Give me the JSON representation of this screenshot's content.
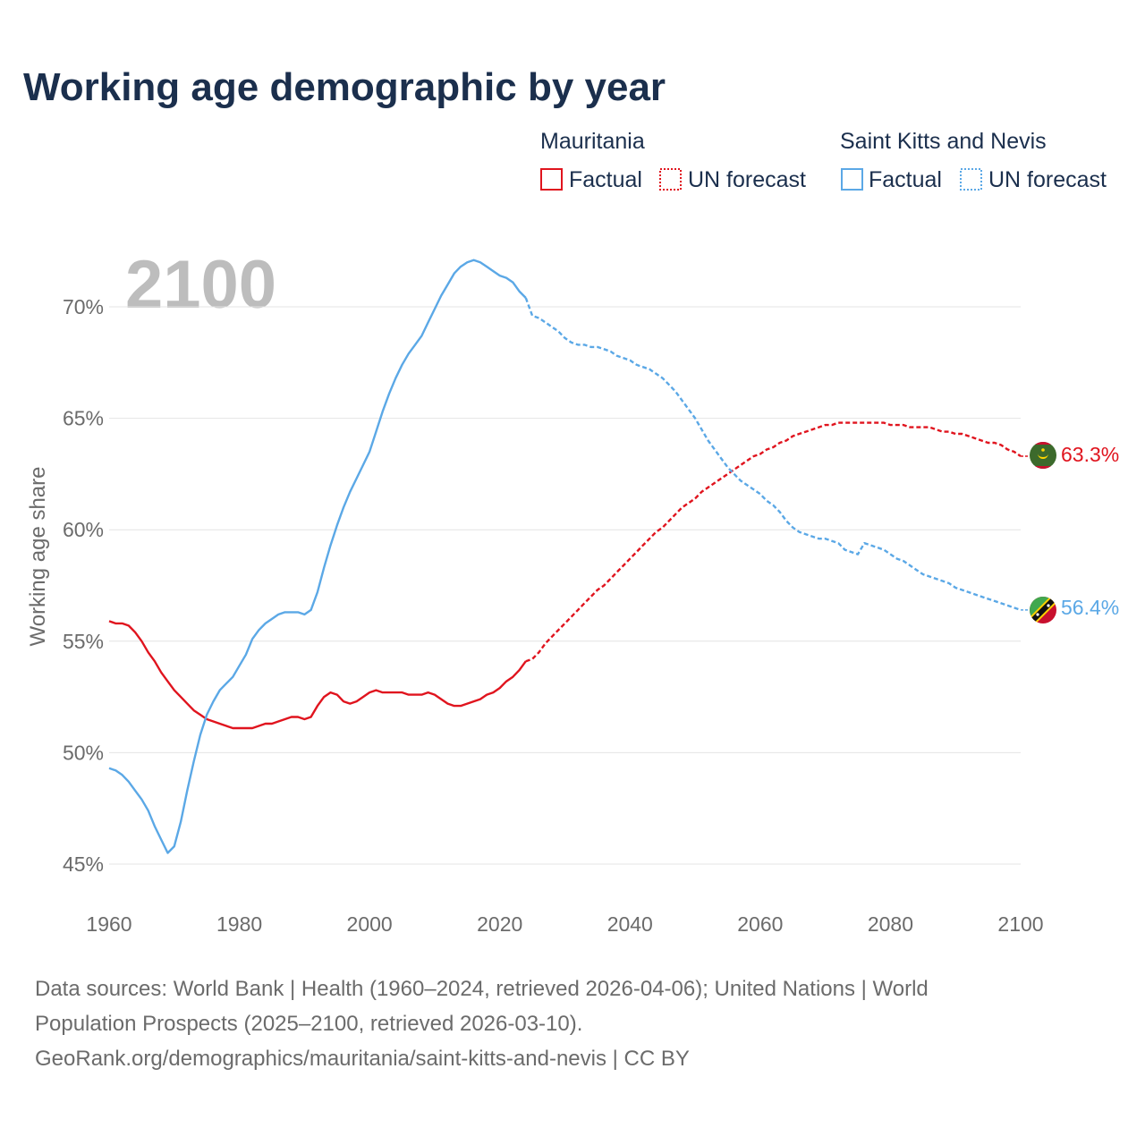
{
  "title": "Working age demographic by year",
  "big_year": "2100",
  "legend": {
    "groups": [
      {
        "name": "Mauritania",
        "factual": "Factual",
        "forecast": "UN forecast",
        "color": "#e0141e"
      },
      {
        "name": "Saint Kitts and Nevis",
        "factual": "Factual",
        "forecast": "UN forecast",
        "color": "#5ba8e6"
      }
    ]
  },
  "footer": {
    "line1": "Data sources: World Bank | Health (1960–2024, retrieved 2026-04-06); United Nations | World",
    "line2": "Population Prospects (2025–2100, retrieved 2026-03-10).",
    "line3": "GeoRank.org/demographics/mauritania/saint-kitts-and-nevis | CC BY"
  },
  "chart_data": {
    "type": "line",
    "title": "Working age demographic by year",
    "xlabel": "",
    "ylabel": "Working age share",
    "xlim": [
      1960,
      2100
    ],
    "ylim": [
      44.5,
      72.5
    ],
    "x_ticks": [
      1960,
      1980,
      2000,
      2020,
      2040,
      2060,
      2080,
      2100
    ],
    "x_tick_labels": [
      "1960",
      "1980",
      "2000",
      "2020",
      "2040",
      "2060",
      "2080",
      "2100"
    ],
    "y_ticks": [
      45,
      50,
      55,
      60,
      65,
      70
    ],
    "y_tick_labels": [
      "45%",
      "50%",
      "55%",
      "60%",
      "65%",
      "70%"
    ],
    "grid": true,
    "factual_end": 2024,
    "series": [
      {
        "name": "Mauritania",
        "color": "#e0141e",
        "end_label": "63.3%",
        "points": [
          [
            1960,
            55.9
          ],
          [
            1961,
            55.8
          ],
          [
            1962,
            55.8
          ],
          [
            1963,
            55.7
          ],
          [
            1964,
            55.4
          ],
          [
            1965,
            55.0
          ],
          [
            1966,
            54.5
          ],
          [
            1967,
            54.1
          ],
          [
            1968,
            53.6
          ],
          [
            1969,
            53.2
          ],
          [
            1970,
            52.8
          ],
          [
            1971,
            52.5
          ],
          [
            1972,
            52.2
          ],
          [
            1973,
            51.9
          ],
          [
            1974,
            51.7
          ],
          [
            1975,
            51.5
          ],
          [
            1976,
            51.4
          ],
          [
            1977,
            51.3
          ],
          [
            1978,
            51.2
          ],
          [
            1979,
            51.1
          ],
          [
            1980,
            51.1
          ],
          [
            1981,
            51.1
          ],
          [
            1982,
            51.1
          ],
          [
            1983,
            51.2
          ],
          [
            1984,
            51.3
          ],
          [
            1985,
            51.3
          ],
          [
            1986,
            51.4
          ],
          [
            1987,
            51.5
          ],
          [
            1988,
            51.6
          ],
          [
            1989,
            51.6
          ],
          [
            1990,
            51.5
          ],
          [
            1991,
            51.6
          ],
          [
            1992,
            52.1
          ],
          [
            1993,
            52.5
          ],
          [
            1994,
            52.7
          ],
          [
            1995,
            52.6
          ],
          [
            1996,
            52.3
          ],
          [
            1997,
            52.2
          ],
          [
            1998,
            52.3
          ],
          [
            1999,
            52.5
          ],
          [
            2000,
            52.7
          ],
          [
            2001,
            52.8
          ],
          [
            2002,
            52.7
          ],
          [
            2003,
            52.7
          ],
          [
            2004,
            52.7
          ],
          [
            2005,
            52.7
          ],
          [
            2006,
            52.6
          ],
          [
            2007,
            52.6
          ],
          [
            2008,
            52.6
          ],
          [
            2009,
            52.7
          ],
          [
            2010,
            52.6
          ],
          [
            2011,
            52.4
          ],
          [
            2012,
            52.2
          ],
          [
            2013,
            52.1
          ],
          [
            2014,
            52.1
          ],
          [
            2015,
            52.2
          ],
          [
            2016,
            52.3
          ],
          [
            2017,
            52.4
          ],
          [
            2018,
            52.6
          ],
          [
            2019,
            52.7
          ],
          [
            2020,
            52.9
          ],
          [
            2021,
            53.2
          ],
          [
            2022,
            53.4
          ],
          [
            2023,
            53.7
          ],
          [
            2024,
            54.1
          ],
          [
            2025,
            54.2
          ],
          [
            2026,
            54.5
          ],
          [
            2027,
            54.9
          ],
          [
            2028,
            55.2
          ],
          [
            2029,
            55.5
          ],
          [
            2030,
            55.8
          ],
          [
            2031,
            56.1
          ],
          [
            2032,
            56.4
          ],
          [
            2033,
            56.7
          ],
          [
            2034,
            57.0
          ],
          [
            2035,
            57.3
          ],
          [
            2036,
            57.5
          ],
          [
            2037,
            57.8
          ],
          [
            2038,
            58.1
          ],
          [
            2039,
            58.4
          ],
          [
            2040,
            58.7
          ],
          [
            2041,
            59.0
          ],
          [
            2042,
            59.3
          ],
          [
            2043,
            59.6
          ],
          [
            2044,
            59.9
          ],
          [
            2045,
            60.1
          ],
          [
            2046,
            60.4
          ],
          [
            2047,
            60.7
          ],
          [
            2048,
            61.0
          ],
          [
            2049,
            61.2
          ],
          [
            2050,
            61.4
          ],
          [
            2051,
            61.7
          ],
          [
            2052,
            61.9
          ],
          [
            2053,
            62.1
          ],
          [
            2054,
            62.3
          ],
          [
            2055,
            62.5
          ],
          [
            2056,
            62.7
          ],
          [
            2057,
            62.9
          ],
          [
            2058,
            63.1
          ],
          [
            2059,
            63.3
          ],
          [
            2060,
            63.4
          ],
          [
            2061,
            63.6
          ],
          [
            2062,
            63.7
          ],
          [
            2063,
            63.9
          ],
          [
            2064,
            64.0
          ],
          [
            2065,
            64.2
          ],
          [
            2066,
            64.3
          ],
          [
            2067,
            64.4
          ],
          [
            2068,
            64.5
          ],
          [
            2069,
            64.6
          ],
          [
            2070,
            64.7
          ],
          [
            2071,
            64.7
          ],
          [
            2072,
            64.8
          ],
          [
            2073,
            64.8
          ],
          [
            2074,
            64.8
          ],
          [
            2075,
            64.8
          ],
          [
            2076,
            64.8
          ],
          [
            2077,
            64.8
          ],
          [
            2078,
            64.8
          ],
          [
            2079,
            64.8
          ],
          [
            2080,
            64.7
          ],
          [
            2081,
            64.7
          ],
          [
            2082,
            64.7
          ],
          [
            2083,
            64.6
          ],
          [
            2084,
            64.6
          ],
          [
            2085,
            64.6
          ],
          [
            2086,
            64.6
          ],
          [
            2087,
            64.5
          ],
          [
            2088,
            64.4
          ],
          [
            2089,
            64.4
          ],
          [
            2090,
            64.3
          ],
          [
            2091,
            64.3
          ],
          [
            2092,
            64.2
          ],
          [
            2093,
            64.1
          ],
          [
            2094,
            64.0
          ],
          [
            2095,
            63.9
          ],
          [
            2096,
            63.9
          ],
          [
            2097,
            63.8
          ],
          [
            2098,
            63.6
          ],
          [
            2099,
            63.5
          ],
          [
            2100,
            63.3
          ]
        ]
      },
      {
        "name": "Saint Kitts and Nevis",
        "color": "#5ba8e6",
        "end_label": "56.4%",
        "points": [
          [
            1960,
            49.3
          ],
          [
            1961,
            49.2
          ],
          [
            1962,
            49.0
          ],
          [
            1963,
            48.7
          ],
          [
            1964,
            48.3
          ],
          [
            1965,
            47.9
          ],
          [
            1966,
            47.4
          ],
          [
            1967,
            46.7
          ],
          [
            1968,
            46.1
          ],
          [
            1969,
            45.5
          ],
          [
            1970,
            45.8
          ],
          [
            1971,
            46.9
          ],
          [
            1972,
            48.3
          ],
          [
            1973,
            49.6
          ],
          [
            1974,
            50.8
          ],
          [
            1975,
            51.7
          ],
          [
            1976,
            52.3
          ],
          [
            1977,
            52.8
          ],
          [
            1978,
            53.1
          ],
          [
            1979,
            53.4
          ],
          [
            1980,
            53.9
          ],
          [
            1981,
            54.4
          ],
          [
            1982,
            55.1
          ],
          [
            1983,
            55.5
          ],
          [
            1984,
            55.8
          ],
          [
            1985,
            56.0
          ],
          [
            1986,
            56.2
          ],
          [
            1987,
            56.3
          ],
          [
            1988,
            56.3
          ],
          [
            1989,
            56.3
          ],
          [
            1990,
            56.2
          ],
          [
            1991,
            56.4
          ],
          [
            1992,
            57.2
          ],
          [
            1993,
            58.3
          ],
          [
            1994,
            59.3
          ],
          [
            1995,
            60.2
          ],
          [
            1996,
            61.0
          ],
          [
            1997,
            61.7
          ],
          [
            1998,
            62.3
          ],
          [
            1999,
            62.9
          ],
          [
            2000,
            63.5
          ],
          [
            2001,
            64.4
          ],
          [
            2002,
            65.3
          ],
          [
            2003,
            66.1
          ],
          [
            2004,
            66.8
          ],
          [
            2005,
            67.4
          ],
          [
            2006,
            67.9
          ],
          [
            2007,
            68.3
          ],
          [
            2008,
            68.7
          ],
          [
            2009,
            69.3
          ],
          [
            2010,
            69.9
          ],
          [
            2011,
            70.5
          ],
          [
            2012,
            71.0
          ],
          [
            2013,
            71.5
          ],
          [
            2014,
            71.8
          ],
          [
            2015,
            72.0
          ],
          [
            2016,
            72.1
          ],
          [
            2017,
            72.0
          ],
          [
            2018,
            71.8
          ],
          [
            2019,
            71.6
          ],
          [
            2020,
            71.4
          ],
          [
            2021,
            71.3
          ],
          [
            2022,
            71.1
          ],
          [
            2023,
            70.7
          ],
          [
            2024,
            70.4
          ],
          [
            2025,
            69.6
          ],
          [
            2026,
            69.5
          ],
          [
            2027,
            69.3
          ],
          [
            2028,
            69.1
          ],
          [
            2029,
            68.9
          ],
          [
            2030,
            68.6
          ],
          [
            2031,
            68.4
          ],
          [
            2032,
            68.3
          ],
          [
            2033,
            68.3
          ],
          [
            2034,
            68.2
          ],
          [
            2035,
            68.2
          ],
          [
            2036,
            68.1
          ],
          [
            2037,
            68.0
          ],
          [
            2038,
            67.8
          ],
          [
            2039,
            67.7
          ],
          [
            2040,
            67.6
          ],
          [
            2041,
            67.4
          ],
          [
            2042,
            67.3
          ],
          [
            2043,
            67.2
          ],
          [
            2044,
            67.0
          ],
          [
            2045,
            66.8
          ],
          [
            2046,
            66.5
          ],
          [
            2047,
            66.2
          ],
          [
            2048,
            65.8
          ],
          [
            2049,
            65.4
          ],
          [
            2050,
            65.0
          ],
          [
            2051,
            64.5
          ],
          [
            2052,
            64.0
          ],
          [
            2053,
            63.6
          ],
          [
            2054,
            63.2
          ],
          [
            2055,
            62.8
          ],
          [
            2056,
            62.5
          ],
          [
            2057,
            62.2
          ],
          [
            2058,
            62.0
          ],
          [
            2059,
            61.8
          ],
          [
            2060,
            61.6
          ],
          [
            2061,
            61.3
          ],
          [
            2062,
            61.1
          ],
          [
            2063,
            60.8
          ],
          [
            2064,
            60.4
          ],
          [
            2065,
            60.1
          ],
          [
            2066,
            59.9
          ],
          [
            2067,
            59.8
          ],
          [
            2068,
            59.7
          ],
          [
            2069,
            59.6
          ],
          [
            2070,
            59.6
          ],
          [
            2071,
            59.5
          ],
          [
            2072,
            59.4
          ],
          [
            2073,
            59.1
          ],
          [
            2074,
            59.0
          ],
          [
            2075,
            58.9
          ],
          [
            2076,
            59.4
          ],
          [
            2077,
            59.3
          ],
          [
            2078,
            59.2
          ],
          [
            2079,
            59.1
          ],
          [
            2080,
            58.9
          ],
          [
            2081,
            58.7
          ],
          [
            2082,
            58.6
          ],
          [
            2083,
            58.4
          ],
          [
            2084,
            58.2
          ],
          [
            2085,
            58.0
          ],
          [
            2086,
            57.9
          ],
          [
            2087,
            57.8
          ],
          [
            2088,
            57.7
          ],
          [
            2089,
            57.6
          ],
          [
            2090,
            57.4
          ],
          [
            2091,
            57.3
          ],
          [
            2092,
            57.2
          ],
          [
            2093,
            57.1
          ],
          [
            2094,
            57.0
          ],
          [
            2095,
            56.9
          ],
          [
            2096,
            56.8
          ],
          [
            2097,
            56.7
          ],
          [
            2098,
            56.6
          ],
          [
            2099,
            56.5
          ],
          [
            2100,
            56.4
          ]
        ]
      }
    ]
  }
}
